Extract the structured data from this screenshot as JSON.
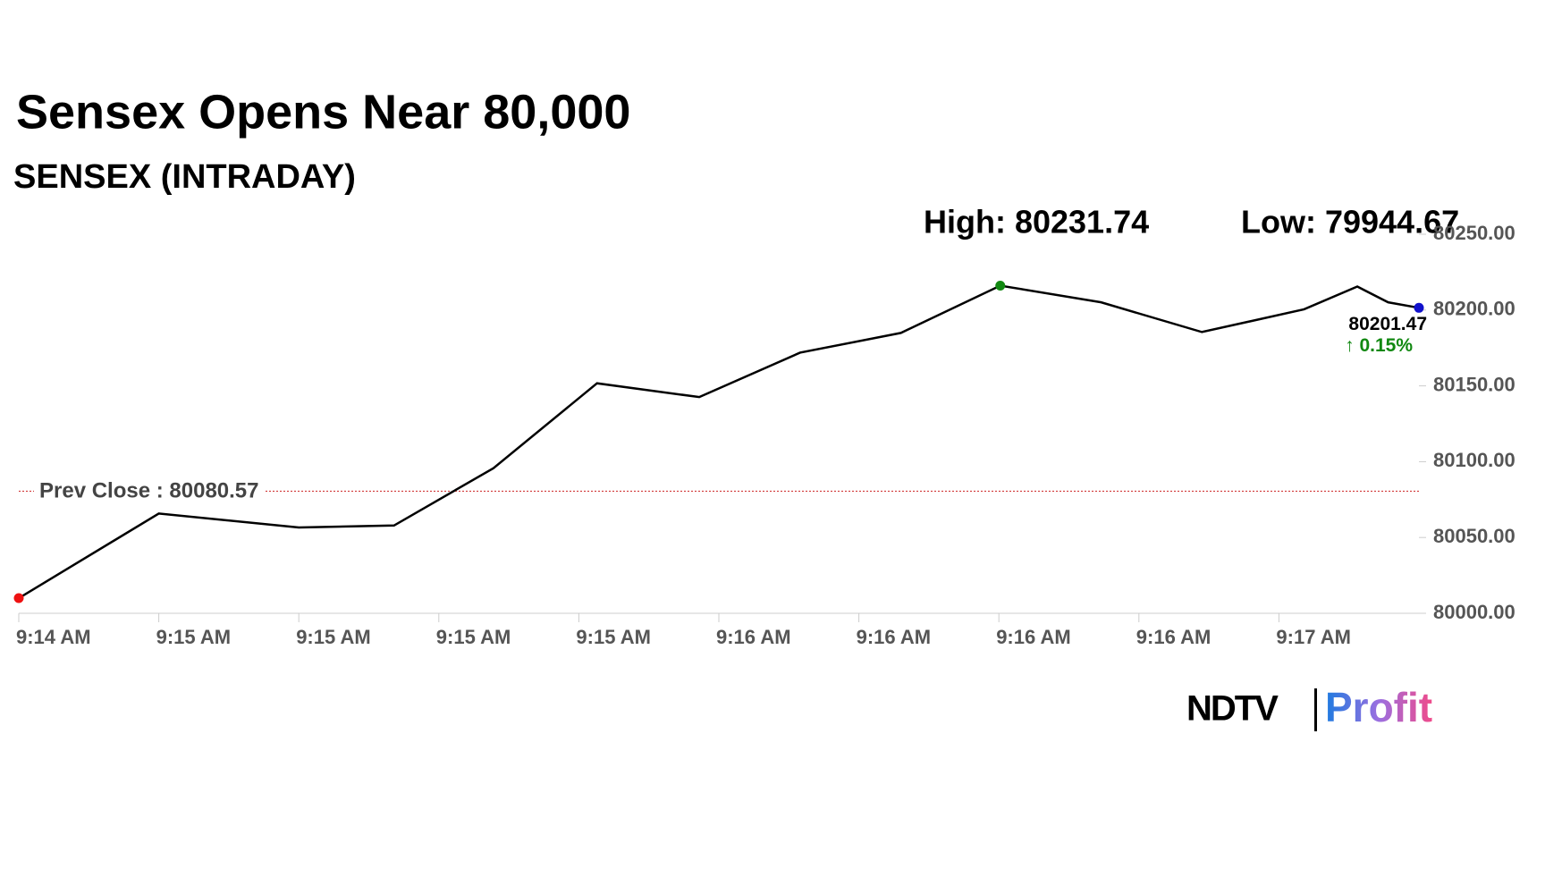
{
  "chart_data": {
    "type": "line",
    "title": "Sensex Opens Near 80,000",
    "subtitle": "SENSEX (INTRADAY)",
    "high_label": "High: 80231.74",
    "low_label": "Low: 79944.67",
    "x": [
      0,
      1,
      2,
      2.68,
      3.39,
      4.13,
      4.86,
      5.58,
      6.3,
      7.01,
      7.73,
      8.45,
      9.18,
      9.56,
      9.78,
      10
    ],
    "series": [
      {
        "name": "SENSEX",
        "color": "#000000",
        "values": [
          80010,
          80065.8,
          80056.6,
          80057.9,
          80095.7,
          80151.7,
          80142.6,
          80171.9,
          80184.9,
          80216.1,
          80205.1,
          80185.5,
          80200.5,
          80215.5,
          80205.1,
          80201.47
        ]
      }
    ],
    "marker_colors": {
      "first": "#ee1111",
      "high": "#118811",
      "last": "#1111cc"
    },
    "last_label": "80201.47",
    "change_label": "↑ 0.15%",
    "change_color": "#118811",
    "reference_line": {
      "value": 80080.57,
      "label": "Prev Close : 80080.57",
      "color": "#cc2222"
    },
    "xlim": [
      0,
      10
    ],
    "xticks": [
      {
        "value": 0,
        "label": "9:14 AM"
      },
      {
        "value": 1,
        "label": "9:15 AM"
      },
      {
        "value": 2,
        "label": "9:15 AM"
      },
      {
        "value": 3,
        "label": "9:15 AM"
      },
      {
        "value": 4,
        "label": "9:15 AM"
      },
      {
        "value": 5,
        "label": "9:16 AM"
      },
      {
        "value": 6,
        "label": "9:16 AM"
      },
      {
        "value": 7,
        "label": "9:16 AM"
      },
      {
        "value": 8,
        "label": "9:16 AM"
      },
      {
        "value": 9,
        "label": "9:17 AM"
      }
    ],
    "ylim": [
      80000,
      80250
    ],
    "yticks": [
      {
        "value": 80000,
        "label": "80000.00"
      },
      {
        "value": 80050,
        "label": "80050.00"
      },
      {
        "value": 80100,
        "label": "80100.00"
      },
      {
        "value": 80150,
        "label": "80150.00"
      },
      {
        "value": 80200,
        "label": "80200.00"
      },
      {
        "value": 80250,
        "label": "80250.00"
      }
    ]
  },
  "logo": {
    "brand": "NDTV",
    "product": "Profit"
  }
}
